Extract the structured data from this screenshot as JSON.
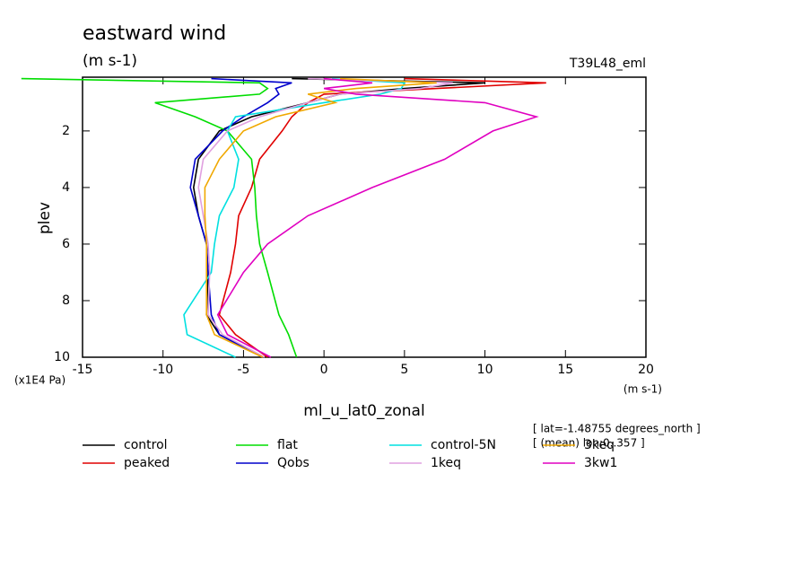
{
  "chart_data": {
    "type": "line",
    "title": "eastward wind",
    "subtitle": "(m s-1)",
    "annotation": "T39L48_eml",
    "y_label": "plev",
    "y_unit": "(x1E4 Pa)",
    "x_unit": "(m s-1)",
    "x_label": "ml_u_lat0_zonal",
    "notes": [
      "[ lat=-1.48755 degrees_north ]",
      "[ (mean) lon:0..357 ]"
    ],
    "xlim": [
      -15,
      20
    ],
    "xticks": [
      -15,
      -10,
      -5,
      0,
      5,
      10,
      15,
      20
    ],
    "ylim": [
      10,
      0.1
    ],
    "yticks": [
      2,
      4,
      6,
      8,
      10
    ],
    "y": [
      0.15,
      0.3,
      0.5,
      0.7,
      1.0,
      1.5,
      2.0,
      3.0,
      4.0,
      5.0,
      6.0,
      7.0,
      8.5,
      9.2,
      10.0
    ],
    "series": [
      {
        "name": "control",
        "color": "#000000",
        "x": [
          -2,
          10,
          5,
          1,
          -1,
          -4.5,
          -6.5,
          -7.8,
          -8.1,
          -7.8,
          -7.3,
          -7.2,
          -7.3,
          -6.5,
          -3.8
        ]
      },
      {
        "name": "peaked",
        "color": "#e00000",
        "x": [
          5,
          13.8,
          7,
          0,
          -1,
          -2,
          -2.6,
          -4,
          -4.5,
          -5.3,
          -5.5,
          -5.8,
          -6.5,
          -5.5,
          -3.5
        ]
      },
      {
        "name": "flat",
        "color": "#00dd00",
        "x": [
          -18.8,
          -4,
          -3.5,
          -4,
          -10.5,
          -8,
          -6,
          -4.5,
          -4.3,
          -4.2,
          -4,
          -3.5,
          -2.8,
          -2.2,
          -1.7
        ]
      },
      {
        "name": "Qobs",
        "color": "#0000cc",
        "x": [
          -7,
          -2,
          -3,
          -2.8,
          -3.5,
          -5,
          -6.3,
          -8,
          -8.3,
          -7.8,
          -7.3,
          -7.2,
          -7,
          -6.5,
          -3.8
        ]
      },
      {
        "name": "control-5N",
        "color": "#00e0e0",
        "x": [
          0.5,
          5,
          4.8,
          3.5,
          0,
          -5.5,
          -6,
          -5.3,
          -5.6,
          -6.5,
          -6.8,
          -7,
          -8.7,
          -8.5,
          -5.5
        ]
      },
      {
        "name": "1keq",
        "color": "#e0a0e0",
        "x": [
          -1,
          8,
          6,
          1,
          -1,
          -4,
          -6,
          -7.5,
          -7.8,
          -7.5,
          -7.2,
          -7.1,
          -7.2,
          -6.3,
          -3.7
        ]
      },
      {
        "name": "3keq",
        "color": "#f0a800",
        "x": [
          1,
          7,
          2,
          -1,
          0.7,
          -3,
          -5,
          -6.5,
          -7.4,
          -7.4,
          -7.3,
          -7.3,
          -7.3,
          -6.8,
          -3.8
        ]
      },
      {
        "name": "3kw1",
        "color": "#e000c0",
        "x": [
          0,
          3,
          0,
          2,
          10,
          13.2,
          10.5,
          7.5,
          3,
          -1,
          -3.5,
          -5,
          -6.6,
          -6,
          -3.3
        ]
      }
    ]
  }
}
